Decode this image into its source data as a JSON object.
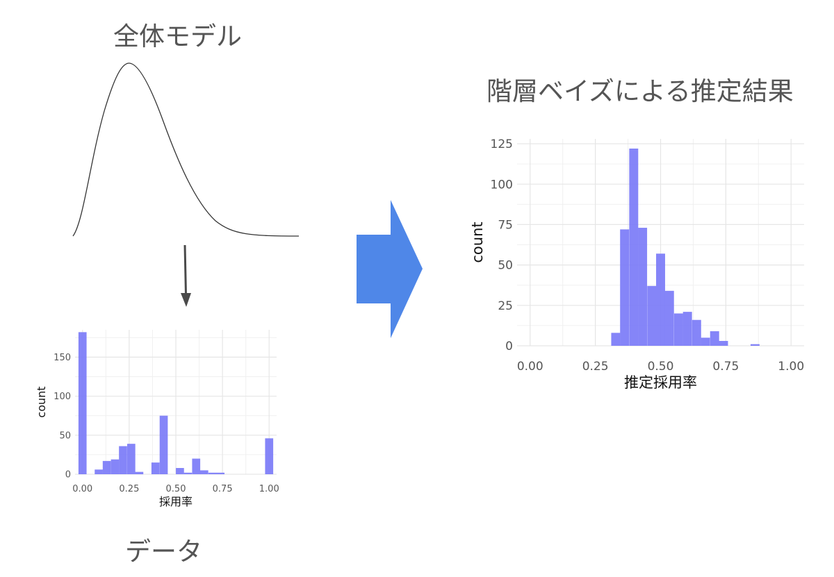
{
  "overall_model_title": "全体モデル",
  "data_title": "データ",
  "result_title": "階層ベイズによる推定結果",
  "arrow_color": "#4f87e8",
  "bar_color": "#7b7bf7",
  "chart_data": [
    {
      "type": "bar",
      "title": "",
      "xlabel": "採用率",
      "ylabel": "count",
      "xlim": [
        -0.04,
        1.04
      ],
      "ylim": [
        0,
        185
      ],
      "xticks": [
        "0.00",
        "0.25",
        "0.50",
        "0.75",
        "1.00"
      ],
      "yticks": [
        "0",
        "50",
        "100",
        "150"
      ],
      "bin_width": 0.0435,
      "bins": [
        {
          "x": 0.0,
          "count": 182
        },
        {
          "x": 0.087,
          "count": 6
        },
        {
          "x": 0.13,
          "count": 17
        },
        {
          "x": 0.174,
          "count": 19
        },
        {
          "x": 0.217,
          "count": 36
        },
        {
          "x": 0.261,
          "count": 39
        },
        {
          "x": 0.304,
          "count": 3
        },
        {
          "x": 0.391,
          "count": 15
        },
        {
          "x": 0.435,
          "count": 75
        },
        {
          "x": 0.522,
          "count": 8
        },
        {
          "x": 0.565,
          "count": 2
        },
        {
          "x": 0.609,
          "count": 20
        },
        {
          "x": 0.652,
          "count": 5
        },
        {
          "x": 0.696,
          "count": 2
        },
        {
          "x": 0.739,
          "count": 2
        },
        {
          "x": 1.0,
          "count": 46
        }
      ]
    },
    {
      "type": "bar",
      "title": "",
      "xlabel": "推定採用率",
      "ylabel": "count",
      "xlim": [
        -0.05,
        1.05
      ],
      "ylim": [
        0,
        128
      ],
      "xticks": [
        "0.00",
        "0.25",
        "0.50",
        "0.75",
        "1.00"
      ],
      "yticks": [
        "0",
        "25",
        "50",
        "75",
        "100",
        "125"
      ],
      "bin_width": 0.0345,
      "bins": [
        {
          "x": 0.328,
          "count": 8
        },
        {
          "x": 0.362,
          "count": 72
        },
        {
          "x": 0.397,
          "count": 122
        },
        {
          "x": 0.431,
          "count": 73
        },
        {
          "x": 0.466,
          "count": 37
        },
        {
          "x": 0.5,
          "count": 57
        },
        {
          "x": 0.534,
          "count": 34
        },
        {
          "x": 0.569,
          "count": 20
        },
        {
          "x": 0.603,
          "count": 21
        },
        {
          "x": 0.638,
          "count": 16
        },
        {
          "x": 0.672,
          "count": 5
        },
        {
          "x": 0.707,
          "count": 9
        },
        {
          "x": 0.741,
          "count": 3
        },
        {
          "x": 0.862,
          "count": 1
        }
      ]
    }
  ]
}
